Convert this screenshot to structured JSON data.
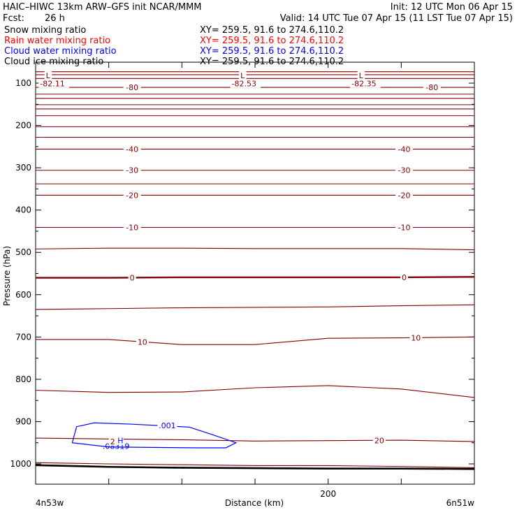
{
  "header": {
    "title_left": "HAIC–HIWC 13km ARW–GFS init    NCAR/MMM",
    "init": "Init: 12 UTC Mon 06 Apr 15",
    "fcst_label": "Fcst:",
    "fcst_value": "26 h",
    "valid": "Valid: 14 UTC Tue 07 Apr 15 (11 LST Tue 07 Apr 15)"
  },
  "fields": [
    {
      "name": "Snow mixing ratio",
      "xy": "XY= 259.5, 91.6 to 274.6,110.2",
      "color": "#000000"
    },
    {
      "name": "Rain water mixing ratio",
      "xy": "XY= 259.5, 91.6 to 274.6,110.2",
      "color": "#ff0000"
    },
    {
      "name": "Cloud water mixing ratio",
      "xy": "XY= 259.5, 91.6 to 274.6,110.2",
      "color": "#0000ff"
    },
    {
      "name": "Cloud ice mixing ratio",
      "xy": "XY= 259.5, 91.6 to 274.6,110.2",
      "color": "#000000"
    }
  ],
  "chart_data": {
    "type": "cross-section contour",
    "xlabel": "Distance (km)",
    "ylabel": "Pressure (hPa)",
    "x_start_label": "4n53w",
    "x_end_label": "6n51w",
    "xlim": [
      0,
      300
    ],
    "ylim": [
      1050,
      70
    ],
    "x_ticks": [
      0,
      50,
      100,
      150,
      200,
      250,
      300
    ],
    "x_tick_labels": [
      {
        "x": 200,
        "label": "200"
      }
    ],
    "y_ticks": [
      100,
      200,
      300,
      400,
      500,
      600,
      700,
      800,
      900,
      1000
    ],
    "y_tick_labels": [
      "100",
      "200",
      "300",
      "400",
      "500",
      "600",
      "700",
      "800",
      "900",
      "1000"
    ],
    "colors": {
      "temperature": "#800000",
      "cloud_water": "#0000ff",
      "ground": "#000000"
    },
    "temperature_isotherms": [
      {
        "y": [
          73,
          73,
          73,
          73,
          73,
          73,
          73
        ],
        "bold": false
      },
      {
        "y": [
          80,
          80,
          80,
          80,
          80,
          80,
          80
        ],
        "bold": false
      },
      {
        "y": [
          89,
          89,
          89,
          89,
          89,
          89,
          89
        ],
        "bold": false
      },
      {
        "y": [
          110,
          110,
          110,
          110,
          110,
          110,
          110
        ],
        "bold": false,
        "label": "-80",
        "label_at": [
          66,
          271
        ]
      },
      {
        "y": [
          126,
          126,
          126,
          126,
          126,
          126,
          126
        ],
        "bold": false
      },
      {
        "y": [
          136,
          136,
          136,
          136,
          136,
          136,
          136
        ],
        "bold": false
      },
      {
        "y": [
          151,
          151,
          151,
          151,
          151,
          151,
          151
        ],
        "bold": false
      },
      {
        "y": [
          161,
          161,
          161,
          161,
          161,
          161,
          161
        ],
        "bold": false
      },
      {
        "y": [
          177,
          177,
          177,
          177,
          177,
          177,
          177
        ],
        "bold": false
      },
      {
        "y": [
          203,
          203,
          203,
          203,
          203,
          203,
          203
        ],
        "bold": false
      },
      {
        "y": [
          228,
          228,
          228,
          228,
          228,
          228,
          228
        ],
        "bold": false
      },
      {
        "y": [
          256,
          256,
          256,
          256,
          256,
          256,
          256
        ],
        "bold": false,
        "label": "-40",
        "label_at": [
          66,
          252
        ]
      },
      {
        "y": [
          306,
          306,
          306,
          306,
          306,
          306,
          306
        ],
        "bold": false,
        "label": "-30",
        "label_at": [
          66,
          252
        ]
      },
      {
        "y": [
          338,
          338,
          338,
          338,
          338,
          338,
          338
        ],
        "bold": false
      },
      {
        "y": [
          365,
          365,
          365,
          365,
          365,
          365,
          365
        ],
        "bold": false,
        "label": "-20",
        "label_at": [
          66,
          252
        ]
      },
      {
        "y": [
          441,
          441,
          441,
          441,
          441,
          441,
          441
        ],
        "bold": false,
        "label": "-10",
        "label_at": [
          66,
          252
        ]
      },
      {
        "y": [
          492,
          490,
          490,
          491,
          491,
          491,
          494
        ],
        "bold": false
      },
      {
        "y": [
          560,
          560,
          559,
          559,
          559,
          559,
          558
        ],
        "bold": true,
        "label": "0",
        "label_at": [
          66,
          252
        ]
      },
      {
        "y": [
          635,
          633,
          631,
          630,
          629,
          626,
          624
        ],
        "bold": false
      },
      {
        "y": [
          706,
          706,
          718,
          718,
          703,
          702,
          700
        ],
        "bold": false,
        "label": "10",
        "label_at": [
          73,
          260
        ]
      },
      {
        "y": [
          826,
          831,
          830,
          820,
          815,
          823,
          843
        ],
        "bold": false
      },
      {
        "y": [
          939,
          941,
          943,
          946,
          945,
          944,
          947
        ],
        "bold": false,
        "label": "20",
        "label_at": [
          235
        ]
      },
      {
        "y": [
          997,
          1000,
          1002,
          1004,
          1004,
          1006,
          1009
        ],
        "bold": false
      }
    ],
    "ground": {
      "y": [
        1003,
        1007,
        1009,
        1010,
        1011,
        1011,
        1012
      ]
    },
    "cloud_water_contour": {
      "label": ".001",
      "points": [
        [
          25,
          950
        ],
        [
          28,
          912
        ],
        [
          40,
          903
        ],
        [
          65,
          906
        ],
        [
          105,
          913
        ],
        [
          120,
          930
        ],
        [
          137,
          950
        ],
        [
          130,
          962
        ],
        [
          110,
          962
        ],
        [
          50,
          960
        ],
        [
          35,
          954
        ],
        [
          25,
          950
        ]
      ],
      "max_label": ".08319",
      "max_at": [
        55,
        958
      ]
    },
    "annotations": [
      {
        "text": "L",
        "x": 7,
        "p": 82,
        "color": "#800000"
      },
      {
        "text": "-82.11",
        "x": 3,
        "p": 101,
        "color": "#800000"
      },
      {
        "text": "L",
        "x": 140,
        "p": 82,
        "color": "#800000"
      },
      {
        "text": "-82.53",
        "x": 134,
        "p": 101,
        "color": "#800000"
      },
      {
        "text": "L",
        "x": 221,
        "p": 82,
        "color": "#800000"
      },
      {
        "text": "-82.35",
        "x": 216,
        "p": 101,
        "color": "#800000"
      },
      {
        "text": "2",
        "x": 51,
        "p": 947,
        "color": "#800000"
      },
      {
        "text": "H",
        "x": 56,
        "p": 945,
        "color": "#0000ff"
      }
    ]
  }
}
